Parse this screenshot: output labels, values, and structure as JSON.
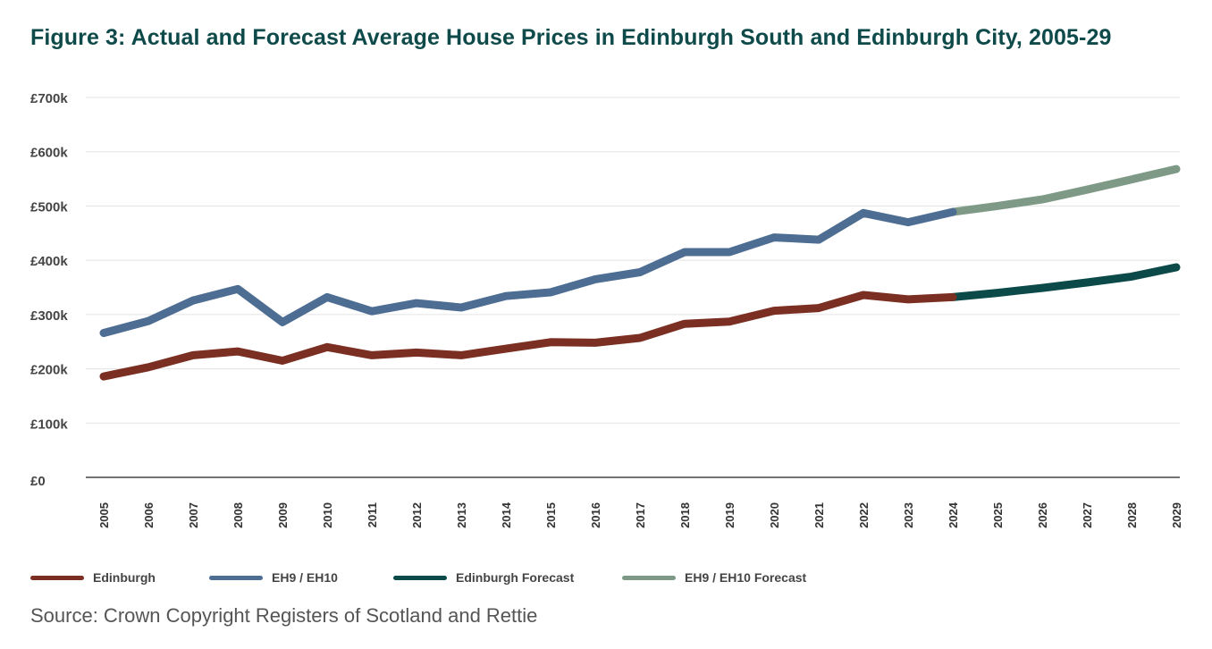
{
  "title": "Figure 3: Actual and Forecast Average House Prices in Edinburgh South and Edinburgh City, 2005-29",
  "source": "Source: Crown Copyright Registers of Scotland and Rettie",
  "colors": {
    "title": "#0f4a4a",
    "edinburgh": "#7b2e22",
    "eh9_eh10": "#4d6d92",
    "edinburgh_forecast": "#0c4a4a",
    "eh9_eh10_forecast": "#7e9a86",
    "grid": "#e3e3e3",
    "axis": "#444444"
  },
  "legend": [
    {
      "name": "Edinburgh",
      "color": "#7b2e22"
    },
    {
      "name": "EH9 / EH10",
      "color": "#4d6d92"
    },
    {
      "name": "Edinburgh Forecast",
      "color": "#0c4a4a"
    },
    {
      "name": "EH9 / EH10 Forecast",
      "color": "#7e9a86"
    }
  ],
  "chart_data": {
    "type": "line",
    "title": "Figure 3: Actual and Forecast Average House Prices in Edinburgh South and Edinburgh City, 2005-29",
    "x": [
      "2005",
      "2006",
      "2007",
      "2008",
      "2009",
      "2010",
      "2011",
      "2012",
      "2013",
      "2014",
      "2015",
      "2016",
      "2017",
      "2018",
      "2019",
      "2020",
      "2021",
      "2022",
      "2023",
      "2024",
      "2025",
      "2026",
      "2027",
      "2028",
      "2029"
    ],
    "ylim": [
      0,
      700000
    ],
    "yticks": [
      0,
      100000,
      200000,
      300000,
      400000,
      500000,
      600000,
      700000
    ],
    "ytick_labels": [
      "£0",
      "£100k",
      "£200k",
      "£300k",
      "£400k",
      "£500k",
      "£600k",
      "£700k"
    ],
    "grid": true,
    "legend_position": "bottom-left",
    "series": [
      {
        "name": "Edinburgh",
        "color": "#7b2e22",
        "x": [
          "2005",
          "2006",
          "2007",
          "2008",
          "2009",
          "2010",
          "2011",
          "2012",
          "2013",
          "2014",
          "2015",
          "2016",
          "2017",
          "2018",
          "2019",
          "2020",
          "2021",
          "2022",
          "2023",
          "2024"
        ],
        "values": [
          186000,
          203000,
          225000,
          232000,
          215000,
          240000,
          225000,
          230000,
          225000,
          237000,
          249000,
          248000,
          257000,
          283000,
          287000,
          307000,
          312000,
          336000,
          328000,
          332000
        ]
      },
      {
        "name": "EH9 / EH10",
        "color": "#4d6d92",
        "x": [
          "2005",
          "2006",
          "2007",
          "2008",
          "2009",
          "2010",
          "2011",
          "2012",
          "2013",
          "2014",
          "2015",
          "2016",
          "2017",
          "2018",
          "2019",
          "2020",
          "2021",
          "2022",
          "2023",
          "2024"
        ],
        "values": [
          266000,
          288000,
          326000,
          347000,
          286000,
          332000,
          306000,
          321000,
          313000,
          334000,
          341000,
          365000,
          378000,
          415000,
          415000,
          442000,
          438000,
          487000,
          470000,
          489000
        ]
      },
      {
        "name": "Edinburgh Forecast",
        "color": "#0c4a4a",
        "x": [
          "2024",
          "2025",
          "2026",
          "2027",
          "2028",
          "2029"
        ],
        "values": [
          332000,
          340000,
          349000,
          359000,
          370000,
          387000
        ]
      },
      {
        "name": "EH9 / EH10 Forecast",
        "color": "#7e9a86",
        "x": [
          "2024",
          "2025",
          "2026",
          "2027",
          "2028",
          "2029"
        ],
        "values": [
          489000,
          500000,
          512000,
          530000,
          549000,
          568000
        ]
      }
    ]
  }
}
